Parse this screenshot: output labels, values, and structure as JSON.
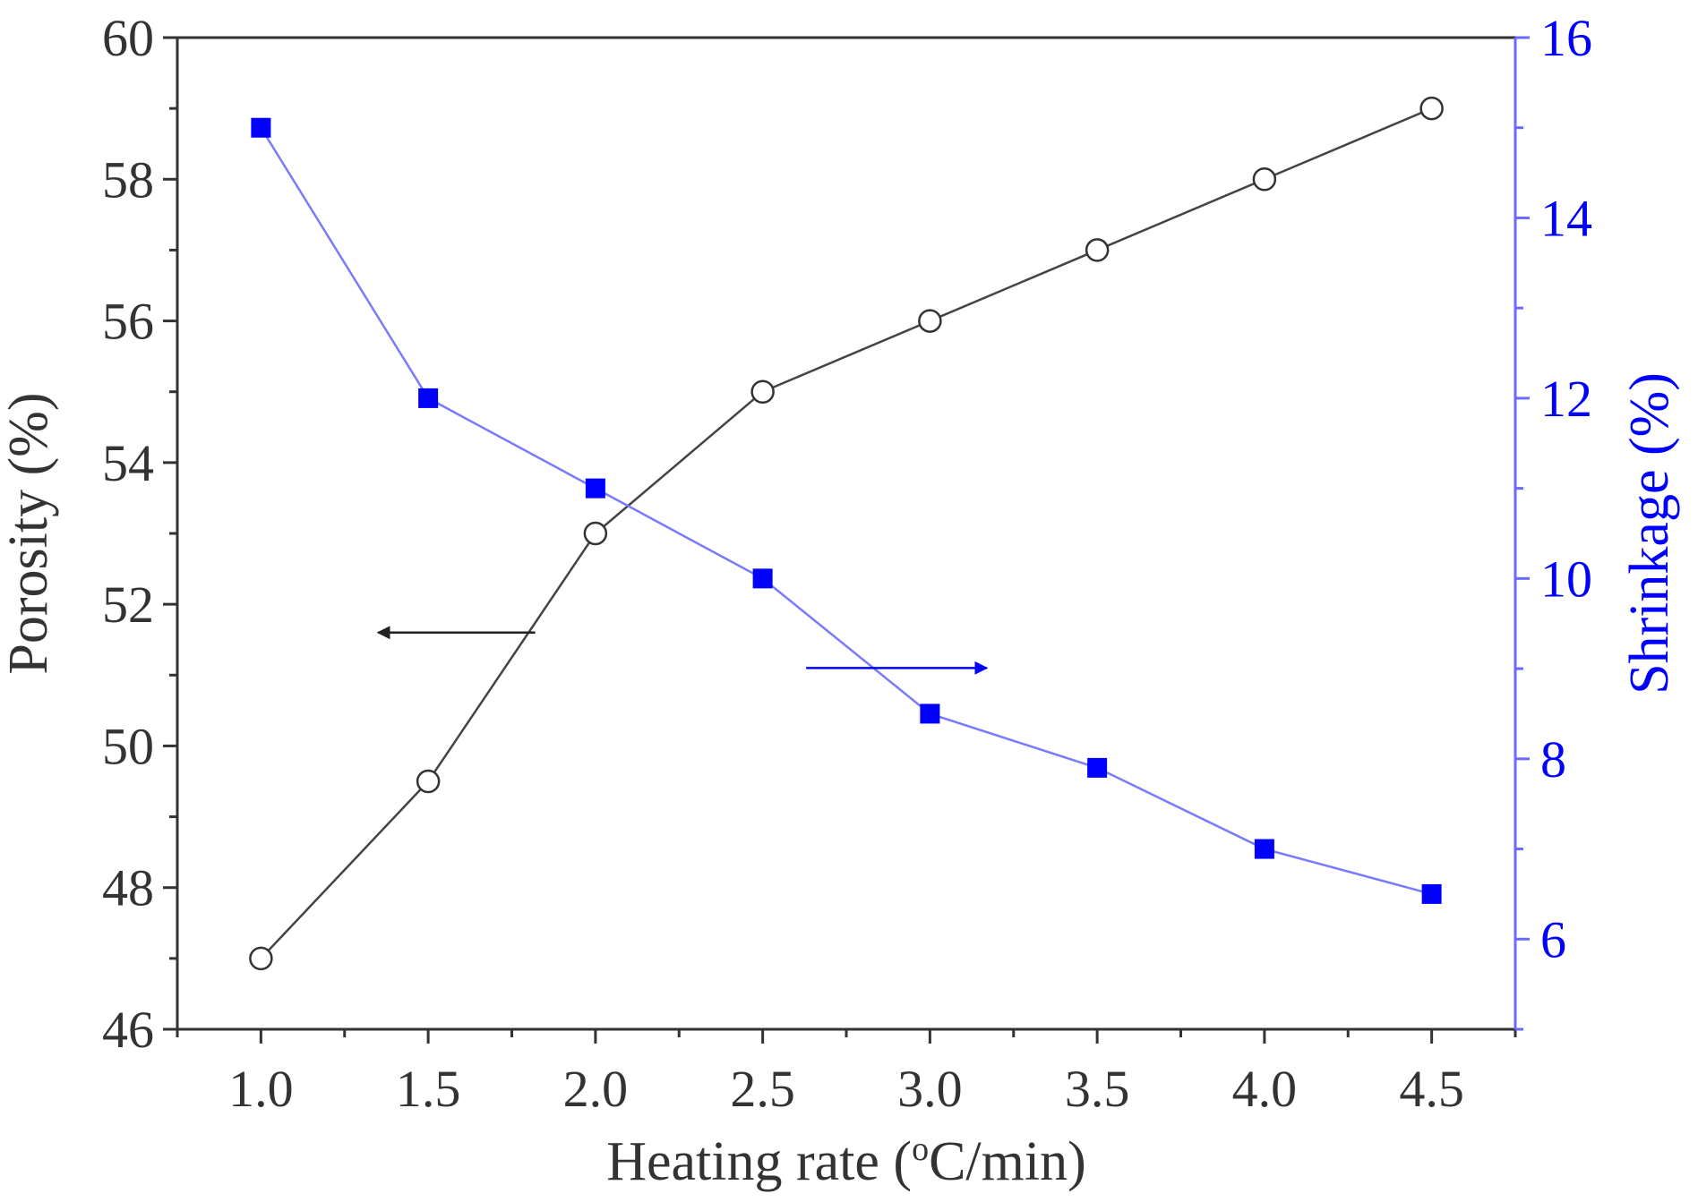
{
  "colors": {
    "left": "#333333",
    "right": "#0000ff",
    "right_axis": "#6a6aff",
    "porosity_line": "#444444",
    "shrinkage_line": "#7a7aff"
  },
  "chart_data": {
    "type": "line",
    "x": [
      1.0,
      1.5,
      2.0,
      2.5,
      3.0,
      3.5,
      4.0,
      4.5
    ],
    "x_tick_labels": [
      "1.0",
      "1.5",
      "2.0",
      "2.5",
      "3.0",
      "3.5",
      "4.0",
      "4.5"
    ],
    "xlim": [
      0.75,
      4.75
    ],
    "xlabel": {
      "pre": "Heating rate (",
      "sup": "o",
      "post": "C/min)"
    },
    "ylabel_left": "Porosity (%)",
    "ylabel_right": "Shrinkage (%)",
    "ylim_left": [
      46,
      60
    ],
    "ylim_right": [
      5,
      16
    ],
    "left_ticks": [
      "46",
      "48",
      "50",
      "52",
      "54",
      "56",
      "58",
      "60"
    ],
    "right_ticks": [
      "6",
      "8",
      "10",
      "12",
      "14",
      "16"
    ],
    "grid": false,
    "series": [
      {
        "axis": "left",
        "marker": "open-circle",
        "values": [
          47.0,
          49.5,
          53.0,
          55.0,
          56.0,
          57.0,
          58.0,
          59.0
        ]
      },
      {
        "axis": "right",
        "marker": "filled-square",
        "values": [
          15.0,
          12.0,
          11.0,
          10.0,
          8.5,
          7.9,
          7.0,
          6.5
        ]
      }
    ],
    "annotations": [
      {
        "type": "arrow",
        "points_to": "left-axis",
        "x_from": 1.82,
        "x_to": 1.35,
        "y_left": 51.6
      },
      {
        "type": "arrow",
        "points_to": "right-axis",
        "x_from": 2.63,
        "x_to": 3.17,
        "y_left": 51.1
      }
    ]
  }
}
